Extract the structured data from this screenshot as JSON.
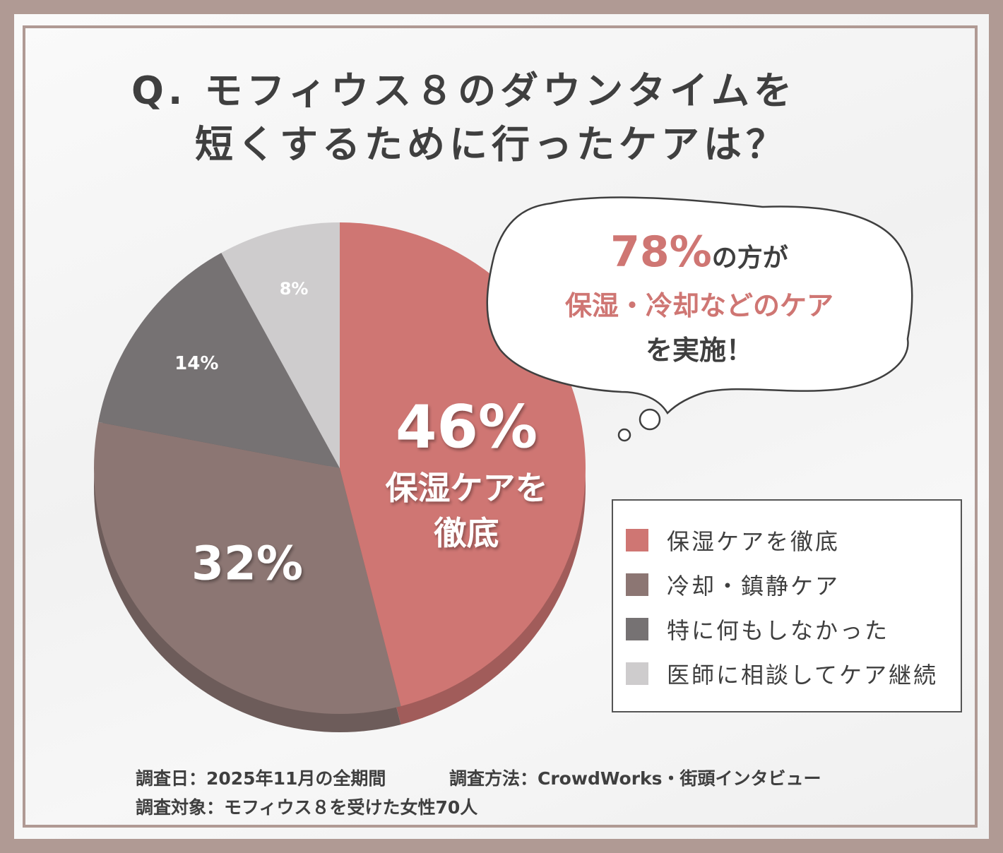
{
  "title": {
    "line1": "Q. モフィウス８のダウンタイムを",
    "line2": "短くするために行ったケアは？"
  },
  "callout": {
    "percent": "78%",
    "line1_suffix": "の方が",
    "line2": "保湿・冷却などのケア",
    "line3": "を実施！"
  },
  "chart_data": {
    "type": "pie",
    "title": "Q. モフィウス８のダウンタイムを短くするために行ったケアは？",
    "categories": [
      "保湿ケアを徹底",
      "冷却・鎮静ケア",
      "特に何もしなかった",
      "医師に相談してケア継続"
    ],
    "values": [
      46,
      32,
      14,
      8
    ],
    "value_labels": [
      "46%",
      "32%",
      "14%",
      "8%"
    ],
    "slice_annotations": [
      "保湿ケアを",
      "徹底"
    ],
    "colors": [
      "#cf7673",
      "#8c7673",
      "#767273",
      "#cecccd"
    ],
    "legend_position": "bottom-right"
  },
  "footer": {
    "survey_date": "調査日：2025年11月の全期間",
    "survey_method": "調査方法：CrowdWorks・街頭インタビュー",
    "survey_target": "調査対象：モフィウス８を受けた女性70人"
  }
}
